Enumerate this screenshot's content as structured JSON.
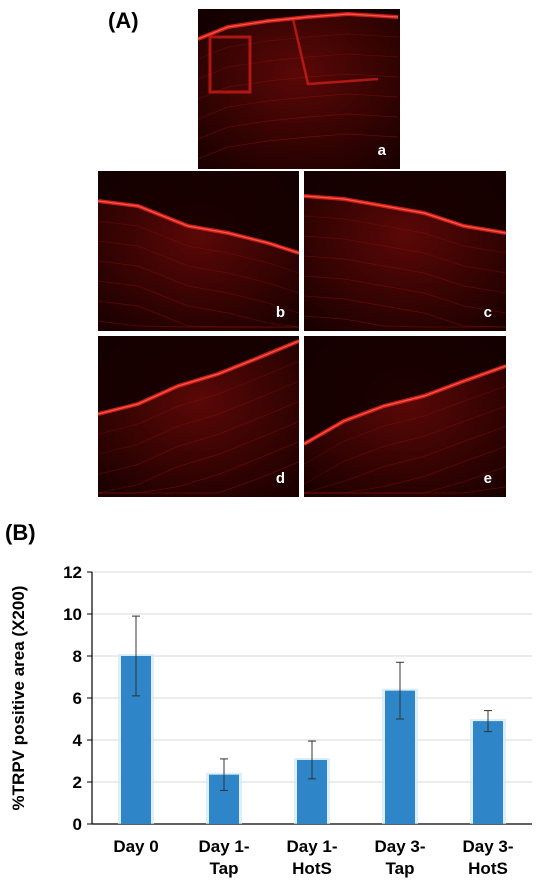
{
  "panels": {
    "a_label": "(A)",
    "b_label": "(B)",
    "tiles": [
      "a",
      "b",
      "c",
      "d",
      "e"
    ]
  },
  "colors": {
    "bar": "#2e86c8",
    "bar_glow": "#cfe8f5",
    "gridline": "#d9d9d9",
    "stain": "#e0201a"
  },
  "chart_data": {
    "type": "bar",
    "categories": [
      [
        "Day 0"
      ],
      [
        "Day 1-",
        "Tap"
      ],
      [
        "Day 1-",
        "HotS"
      ],
      [
        "Day 3-",
        "Tap"
      ],
      [
        "Day 3-",
        "HotS"
      ]
    ],
    "series": [
      {
        "values": [
          8.0,
          2.35,
          3.05,
          6.35,
          4.9
        ],
        "errors": [
          1.9,
          0.75,
          0.9,
          1.35,
          0.5
        ]
      }
    ],
    "title": "",
    "xlabel": "",
    "ylabel": "%TRPV positive area (X200)",
    "ylim": [
      0,
      12
    ],
    "yticks": [
      0,
      2,
      4,
      6,
      8,
      10,
      12
    ],
    "grid": true,
    "legend": "none"
  }
}
